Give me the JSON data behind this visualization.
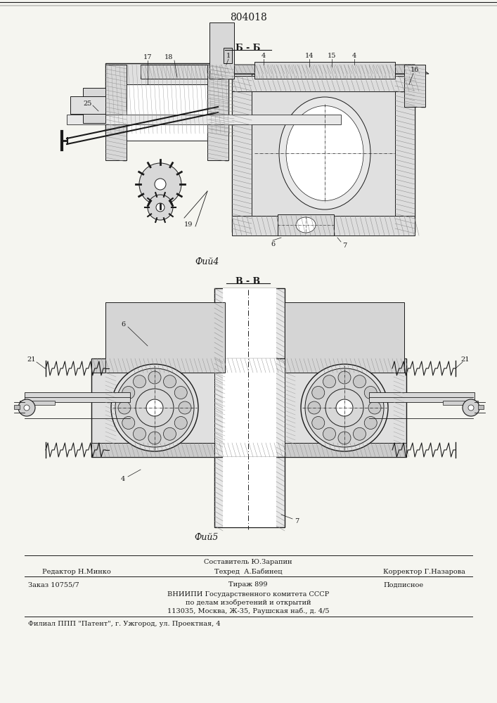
{
  "patent_number": "804018",
  "fig4_label": "Фий4",
  "fig5_label": "Фий5",
  "section_b_label": "Б - Б",
  "section_v_label": "В - В",
  "bg_color": "#f5f5f0",
  "lc": "#1a1a1a",
  "hatch_color": "#555555",
  "footer": {
    "line1_left": "Редактор Н.Минко",
    "line1_center": "Составитель Ю.Зарапин",
    "line1_center2": "Техред  А.Бабинец",
    "line1_right": "Корректор Г.Назарова",
    "line2_left": "Заказ 10755/7",
    "line2_center": "Тираж 899",
    "line2_right": "Подписное",
    "line3": "ВНИИПИ Государственного комитета СССР",
    "line4": "по делам изобретений и открытий",
    "line5": "113035, Москва, Ж-35, Раушская наб., д. 4/5",
    "line6": "Филиал ППП \"Патент\", г. Ужгород, ул. Проектная, 4"
  }
}
